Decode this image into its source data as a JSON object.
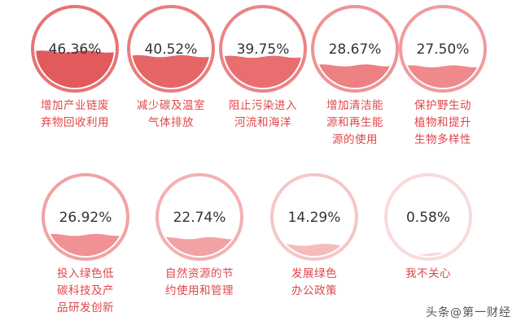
{
  "chart_data": {
    "type": "liquid-gauge",
    "unit": "%",
    "items": [
      {
        "label_lines": [
          "增加产业链废",
          "弃物回收利用"
        ],
        "value": 46.36,
        "value_text": "46.36%",
        "color": "#e35a5c"
      },
      {
        "label_lines": [
          "减少碳及温室",
          "气体排放"
        ],
        "value": 40.52,
        "value_text": "40.52%",
        "color": "#e66668"
      },
      {
        "label_lines": [
          "阻止污染进入",
          "河流和海洋"
        ],
        "value": 39.75,
        "value_text": "39.75%",
        "color": "#e86e70"
      },
      {
        "label_lines": [
          "增加清洁能",
          "源和再生能",
          "源的使用"
        ],
        "value": 28.67,
        "value_text": "28.67%",
        "color": "#ec8082"
      },
      {
        "label_lines": [
          "保护野生动",
          "植物和提升",
          "生物多样性"
        ],
        "value": 27.5,
        "value_text": "27.50%",
        "color": "#ee8a8c"
      },
      {
        "label_lines": [
          "投入绿色低",
          "碳科技及产",
          "品研发创新"
        ],
        "value": 26.92,
        "value_text": "26.92%",
        "color": "#f09294"
      },
      {
        "label_lines": [
          "自然资源的节",
          "约使用和管理"
        ],
        "value": 22.74,
        "value_text": "22.74%",
        "color": "#f2a2a4"
      },
      {
        "label_lines": [
          "发展绿色",
          "办公政策"
        ],
        "value": 14.29,
        "value_text": "14.29%",
        "color": "#f5bcbd"
      },
      {
        "label_lines": [
          "我不关心"
        ],
        "value": 0.58,
        "value_text": "0.58%",
        "color": "#f8d4d5"
      }
    ]
  },
  "watermark": "头条@第一财经"
}
